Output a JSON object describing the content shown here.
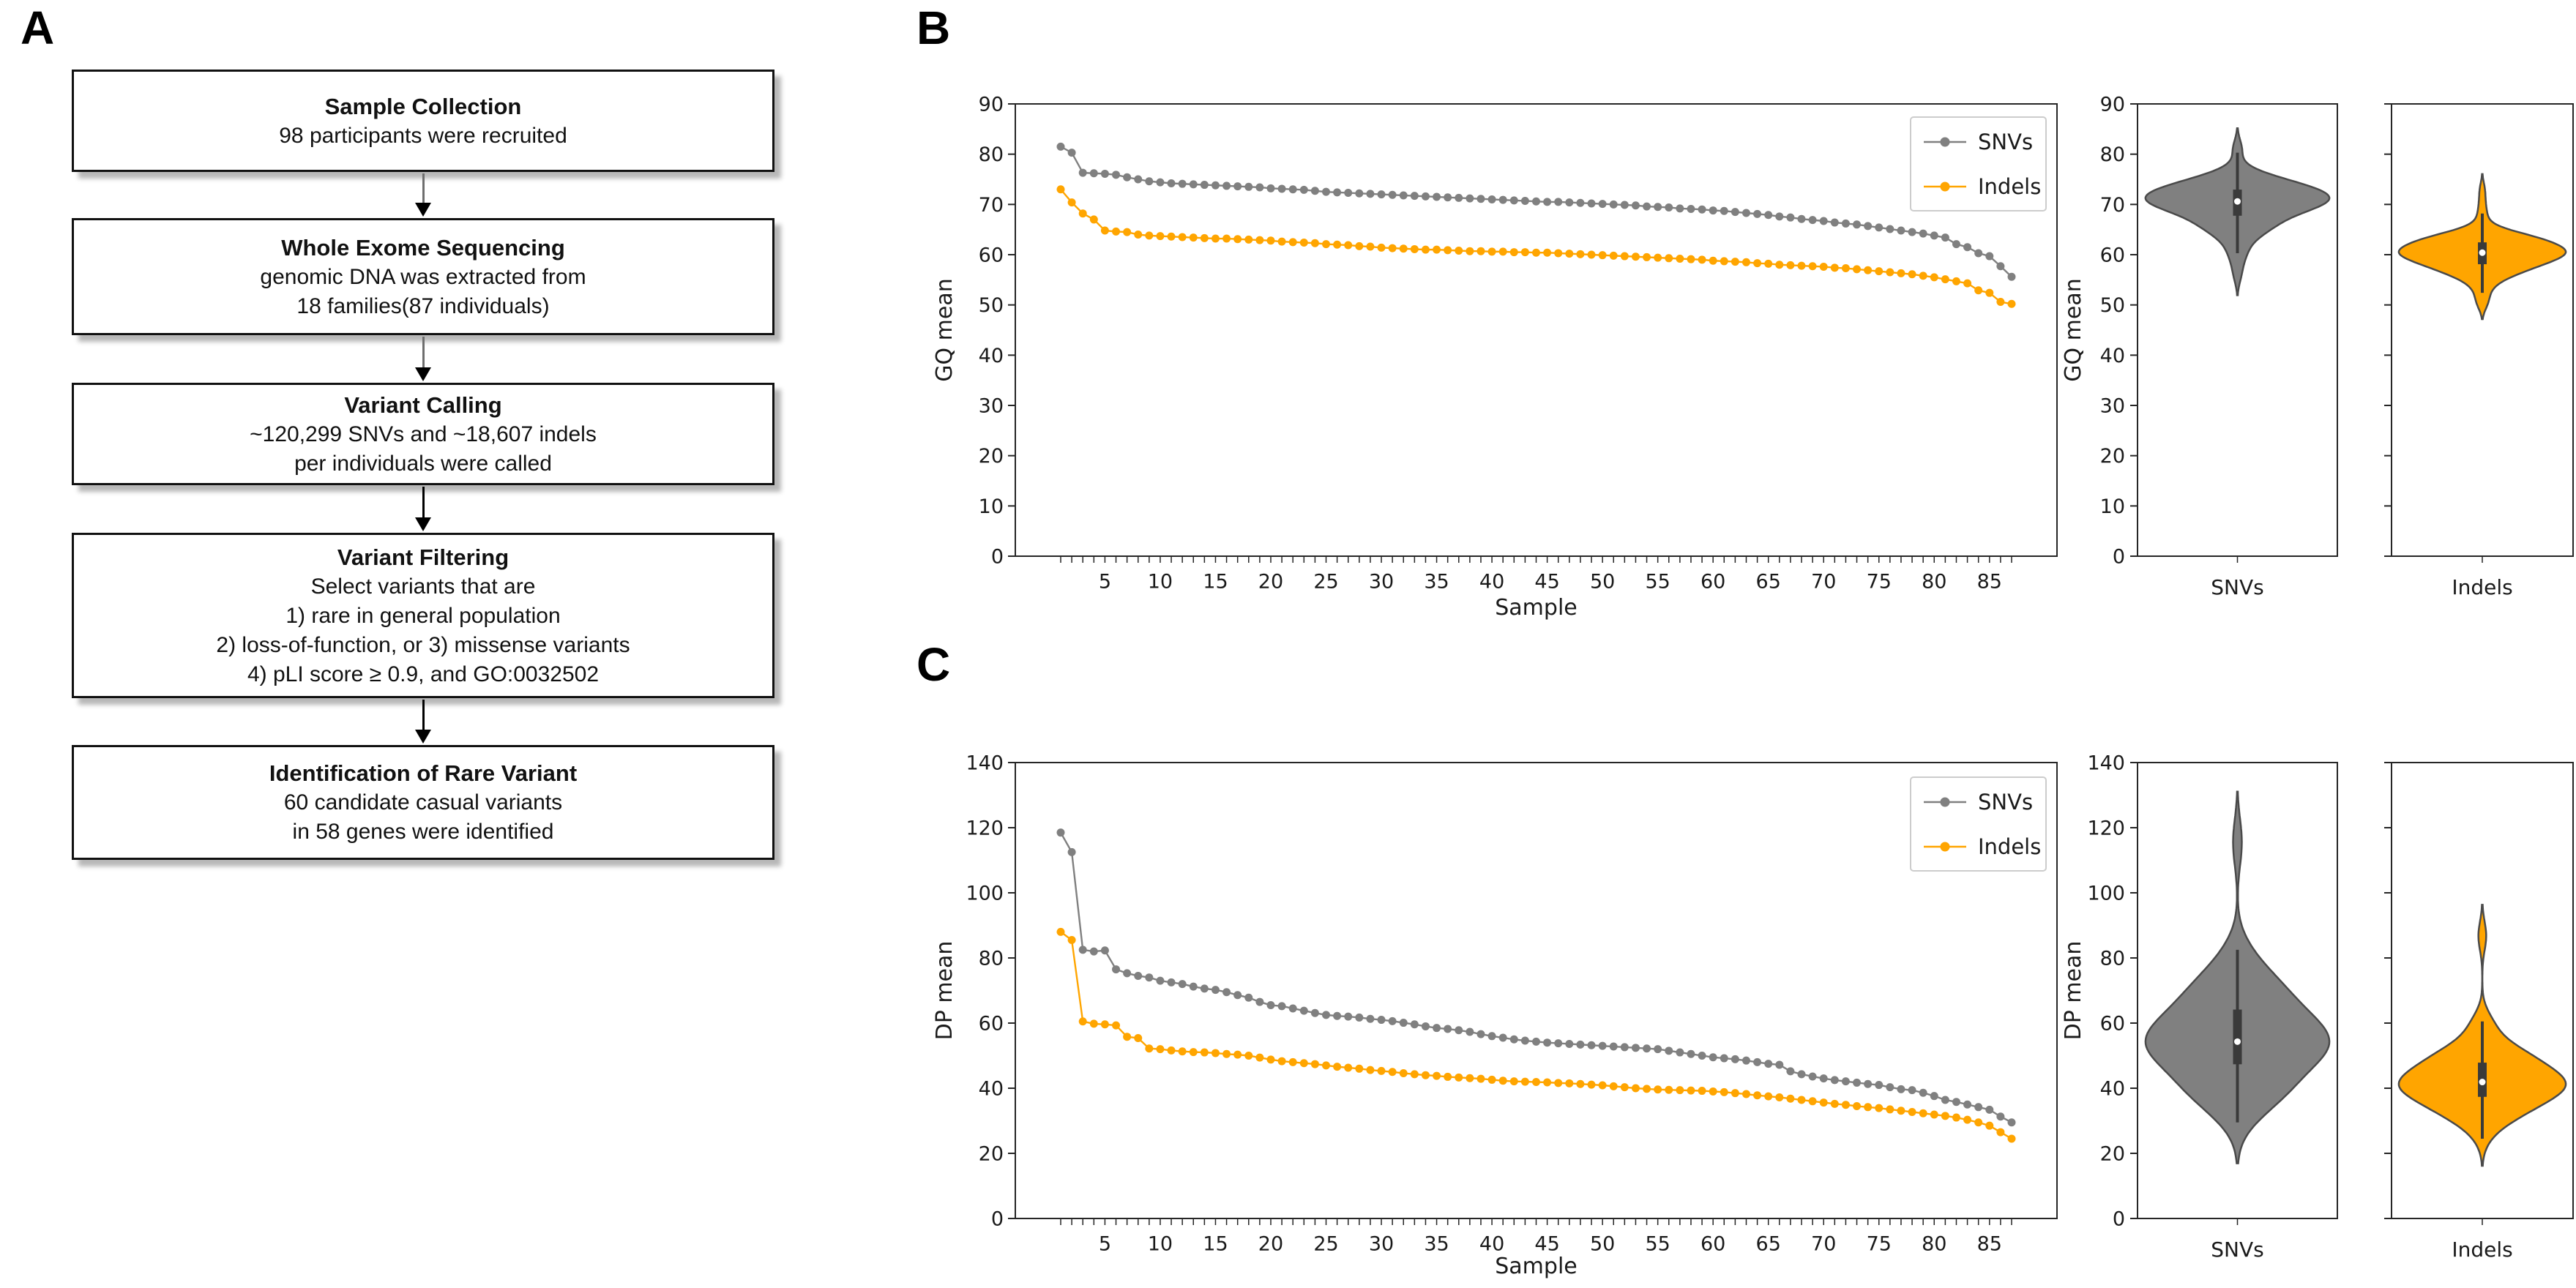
{
  "figure": {
    "background": "#ffffff"
  },
  "panel_a": {
    "label": "A",
    "steps": [
      {
        "title": "Sample Collection",
        "lines": [
          "98 participants were recruited"
        ]
      },
      {
        "title": "Whole Exome Sequencing",
        "lines": [
          "genomic DNA was extracted from",
          "18 families(87 individuals)"
        ]
      },
      {
        "title": "Variant Calling",
        "lines": [
          "~120,299 SNVs and ~18,607 indels",
          "per individuals were called"
        ]
      },
      {
        "title": "Variant Filtering",
        "lines": [
          "Select variants that are",
          "1) rare in general population",
          "2) loss-of-function, or 3) missense variants",
          "4) pLI score ≥ 0.9, and GO:0032502"
        ]
      },
      {
        "title": "Identification of Rare Variant",
        "lines": [
          "60 candidate casual variants",
          "in 58 genes were identified"
        ]
      }
    ]
  },
  "colors": {
    "snv": "#808080",
    "indel": "#FFA500",
    "violin_edge": "#4a4a4a",
    "inner_box": "#3a3a3a",
    "median_dot": "#ffffff",
    "spine": "#262626",
    "legend_border": "#cccccc"
  },
  "chart_data": [
    {
      "id": "gq-by-sample",
      "panel_label": "B",
      "type": "line",
      "title": "",
      "xlabel": "Sample",
      "ylabel": "GQ mean",
      "x_range": [
        1,
        87
      ],
      "ylim": [
        0,
        90
      ],
      "yticks": [
        0,
        10,
        20,
        30,
        40,
        50,
        60,
        70,
        80,
        90
      ],
      "xtick_labels": [
        5,
        10,
        15,
        20,
        25,
        30,
        35,
        40,
        45,
        50,
        55,
        60,
        65,
        70,
        75,
        80,
        85
      ],
      "grid": false,
      "legend_position": "upper right",
      "series": [
        {
          "name": "SNVs",
          "color": "#808080",
          "values": [
            81.5,
            80.3,
            76.3,
            76.2,
            76.1,
            75.9,
            75.4,
            75.0,
            74.6,
            74.4,
            74.2,
            74.1,
            74.0,
            73.9,
            73.8,
            73.7,
            73.6,
            73.5,
            73.4,
            73.2,
            73.1,
            73.0,
            72.9,
            72.7,
            72.5,
            72.4,
            72.3,
            72.2,
            72.1,
            72.0,
            71.9,
            71.8,
            71.7,
            71.6,
            71.5,
            71.4,
            71.3,
            71.2,
            71.1,
            71.0,
            70.9,
            70.8,
            70.7,
            70.6,
            70.5,
            70.5,
            70.4,
            70.3,
            70.2,
            70.1,
            70.0,
            69.9,
            69.8,
            69.6,
            69.5,
            69.4,
            69.2,
            69.1,
            69.0,
            68.8,
            68.7,
            68.5,
            68.3,
            68.1,
            67.9,
            67.6,
            67.4,
            67.1,
            66.9,
            66.7,
            66.4,
            66.2,
            66.0,
            65.7,
            65.4,
            65.1,
            64.8,
            64.5,
            64.2,
            63.8,
            63.4,
            62.1,
            61.5,
            60.3,
            59.7,
            57.7,
            55.6
          ]
        },
        {
          "name": "Indels",
          "color": "#FFA500",
          "values": [
            73.0,
            70.4,
            68.2,
            67.0,
            64.8,
            64.6,
            64.5,
            64.0,
            63.8,
            63.7,
            63.6,
            63.5,
            63.4,
            63.3,
            63.2,
            63.2,
            63.1,
            63.0,
            62.9,
            62.8,
            62.6,
            62.5,
            62.4,
            62.3,
            62.1,
            62.0,
            61.9,
            61.7,
            61.6,
            61.4,
            61.3,
            61.2,
            61.1,
            61.0,
            61.0,
            60.9,
            60.8,
            60.7,
            60.7,
            60.6,
            60.6,
            60.5,
            60.5,
            60.4,
            60.4,
            60.3,
            60.2,
            60.1,
            60.0,
            59.9,
            59.8,
            59.7,
            59.6,
            59.5,
            59.4,
            59.3,
            59.2,
            59.1,
            59.0,
            58.8,
            58.7,
            58.6,
            58.5,
            58.3,
            58.2,
            58.0,
            57.9,
            57.8,
            57.7,
            57.6,
            57.4,
            57.3,
            57.1,
            56.9,
            56.7,
            56.5,
            56.3,
            56.1,
            55.8,
            55.5,
            55.1,
            54.7,
            54.3,
            52.9,
            52.4,
            50.6,
            50.2
          ]
        }
      ]
    },
    {
      "id": "gq-violin-snvs",
      "type": "violin",
      "category": "SNVs",
      "ylabel": "GQ mean",
      "ylim": [
        0,
        90
      ],
      "yticks": [
        0,
        10,
        20,
        30,
        40,
        50,
        60,
        70,
        80,
        90
      ],
      "color": "#808080",
      "show_tick_labels": true,
      "values_from": {
        "chart": "gq-by-sample",
        "series": "SNVs"
      }
    },
    {
      "id": "gq-violin-indels",
      "type": "violin",
      "category": "Indels",
      "ylabel": "",
      "ylim": [
        0,
        90
      ],
      "yticks": [
        0,
        10,
        20,
        30,
        40,
        50,
        60,
        70,
        80,
        90
      ],
      "color": "#FFA500",
      "show_tick_labels": false,
      "values_from": {
        "chart": "gq-by-sample",
        "series": "Indels"
      }
    },
    {
      "id": "dp-by-sample",
      "panel_label": "C",
      "type": "line",
      "title": "",
      "xlabel": "Sample",
      "ylabel": "DP mean",
      "x_range": [
        1,
        87
      ],
      "ylim": [
        0,
        140
      ],
      "yticks": [
        0,
        20,
        40,
        60,
        80,
        100,
        120,
        140
      ],
      "xtick_labels": [
        5,
        10,
        15,
        20,
        25,
        30,
        35,
        40,
        45,
        50,
        55,
        60,
        65,
        70,
        75,
        80,
        85
      ],
      "grid": false,
      "legend_position": "upper right",
      "series": [
        {
          "name": "SNVs",
          "color": "#808080",
          "values": [
            118.5,
            112.5,
            82.5,
            82.0,
            82.3,
            76.5,
            75.3,
            74.5,
            74.0,
            73.0,
            72.5,
            72.0,
            71.2,
            70.6,
            70.2,
            69.5,
            68.6,
            67.8,
            66.5,
            65.5,
            65.2,
            64.5,
            63.8,
            63.1,
            62.5,
            62.2,
            62.0,
            61.7,
            61.3,
            61.0,
            60.6,
            60.1,
            59.6,
            59.0,
            58.5,
            58.2,
            57.8,
            57.3,
            56.6,
            56.0,
            55.5,
            55.0,
            54.6,
            54.3,
            54.0,
            53.8,
            53.6,
            53.4,
            53.2,
            53.0,
            52.8,
            52.6,
            52.4,
            52.2,
            52.0,
            51.5,
            51.0,
            50.5,
            50.0,
            49.5,
            49.2,
            48.9,
            48.5,
            48.0,
            47.5,
            47.2,
            45.2,
            44.3,
            43.6,
            43.0,
            42.5,
            42.1,
            41.7,
            41.3,
            41.0,
            40.3,
            39.7,
            39.4,
            38.6,
            37.6,
            36.4,
            35.8,
            35.0,
            34.2,
            33.4,
            31.3,
            29.5
          ]
        },
        {
          "name": "Indels",
          "color": "#FFA500",
          "values": [
            88.0,
            85.5,
            60.5,
            59.8,
            59.6,
            59.3,
            55.8,
            55.4,
            52.2,
            52.0,
            51.6,
            51.3,
            51.1,
            51.0,
            50.8,
            50.5,
            50.3,
            50.0,
            49.4,
            48.8,
            48.3,
            48.0,
            47.7,
            47.4,
            47.0,
            46.6,
            46.3,
            46.0,
            45.6,
            45.3,
            45.0,
            44.6,
            44.3,
            44.0,
            43.8,
            43.5,
            43.3,
            43.1,
            42.9,
            42.6,
            42.3,
            42.1,
            42.0,
            41.9,
            41.8,
            41.6,
            41.5,
            41.3,
            41.1,
            40.9,
            40.6,
            40.3,
            40.0,
            39.8,
            39.6,
            39.5,
            39.4,
            39.3,
            39.2,
            39.0,
            38.8,
            38.5,
            38.2,
            37.8,
            37.5,
            37.2,
            36.8,
            36.4,
            36.0,
            35.6,
            35.2,
            34.9,
            34.5,
            34.2,
            33.9,
            33.5,
            33.1,
            32.7,
            32.3,
            31.9,
            31.5,
            31.0,
            30.3,
            29.5,
            28.5,
            26.5,
            24.5
          ]
        }
      ]
    },
    {
      "id": "dp-violin-snvs",
      "type": "violin",
      "category": "SNVs",
      "ylabel": "DP mean",
      "ylim": [
        0,
        140
      ],
      "yticks": [
        0,
        20,
        40,
        60,
        80,
        100,
        120,
        140
      ],
      "color": "#808080",
      "show_tick_labels": true,
      "values_from": {
        "chart": "dp-by-sample",
        "series": "SNVs"
      }
    },
    {
      "id": "dp-violin-indels",
      "type": "violin",
      "category": "Indels",
      "ylabel": "",
      "ylim": [
        0,
        140
      ],
      "yticks": [
        0,
        20,
        40,
        60,
        80,
        100,
        120,
        140
      ],
      "color": "#FFA500",
      "show_tick_labels": false,
      "values_from": {
        "chart": "dp-by-sample",
        "series": "Indels"
      }
    }
  ]
}
